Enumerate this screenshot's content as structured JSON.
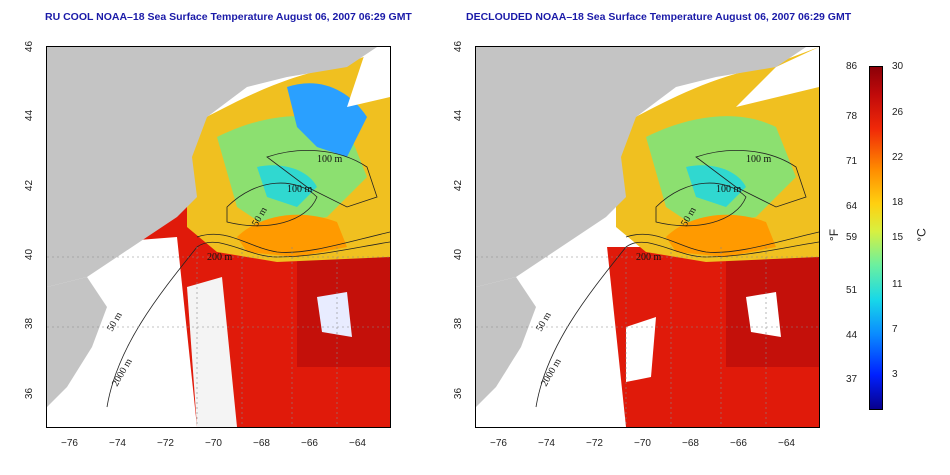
{
  "titles": {
    "left": "RU COOL NOAA–18 Sea Surface Temperature August 06, 2007 06:29 GMT",
    "right": "DECLOUDED NOAA–18 Sea Surface Temperature August 06, 2007 06:29 GMT"
  },
  "axes": {
    "x_ticks": [
      "−76",
      "−74",
      "−72",
      "−70",
      "−68",
      "−66",
      "−64"
    ],
    "y_ticks": [
      "46",
      "44",
      "42",
      "40",
      "38",
      "36"
    ]
  },
  "contours": {
    "c100a": "100 m",
    "c100b": "100 m",
    "c50a": "50 m",
    "c200": "200 m",
    "c50b": "50 m",
    "c2000": "2000 m"
  },
  "colorbar": {
    "fahrenheit_unit": "°F",
    "celsius_unit": "°C",
    "fahrenheit_ticks": [
      "86",
      "78",
      "71",
      "64",
      "59",
      "51",
      "44",
      "37"
    ],
    "celsius_ticks": [
      "30",
      "26",
      "22",
      "18",
      "15",
      "11",
      "7",
      "3"
    ]
  },
  "colors": {
    "land": "#c4c4c4",
    "warm": "#e02010",
    "cold": "#1e60ff",
    "title": "#1a1aa8"
  }
}
